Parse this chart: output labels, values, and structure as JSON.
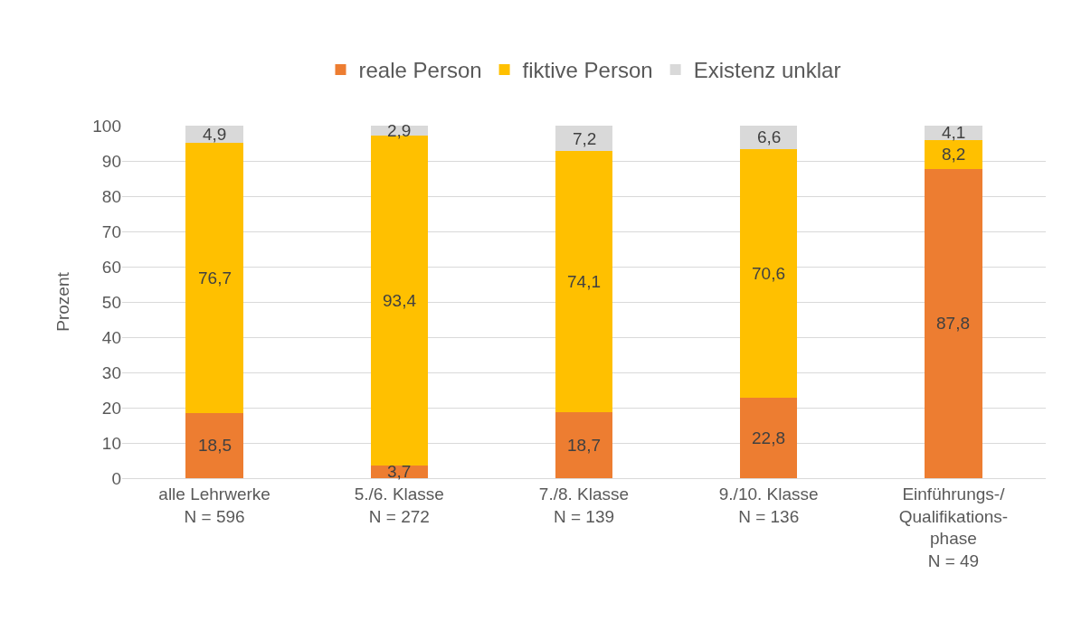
{
  "chart_data": {
    "type": "bar",
    "stacked": true,
    "ylabel": "Prozent",
    "categories": [
      "alle Lehrwerke\nN = 596",
      "5./6. Klasse\nN = 272",
      "7./8. Klasse\nN = 139",
      "9./10. Klasse\nN = 136",
      "Einführungs-/\nQualifikations-\nphase\nN = 49"
    ],
    "series": [
      {
        "name": "reale Person",
        "color": "#ed7d31",
        "values": [
          18.5,
          3.7,
          18.7,
          22.8,
          87.8
        ],
        "value_labels": [
          "18,5",
          "3,7",
          "18,7",
          "22,8",
          "87,8"
        ]
      },
      {
        "name": "fiktive Person",
        "color": "#ffc000",
        "values": [
          76.7,
          93.4,
          74.1,
          70.6,
          8.2
        ],
        "value_labels": [
          "76,7",
          "93,4",
          "74,1",
          "70,6",
          "8,2"
        ]
      },
      {
        "name": "Existenz unklar",
        "color": "#d9d9d9",
        "values": [
          4.9,
          2.9,
          7.2,
          6.6,
          4.1
        ],
        "value_labels": [
          "4,9",
          "2,9",
          "7,2",
          "6,6",
          "4,1"
        ]
      }
    ],
    "ylim": [
      0,
      100
    ],
    "yticks": [
      0,
      10,
      20,
      30,
      40,
      50,
      60,
      70,
      80,
      90,
      100
    ],
    "grid": "y",
    "legend": "top"
  }
}
